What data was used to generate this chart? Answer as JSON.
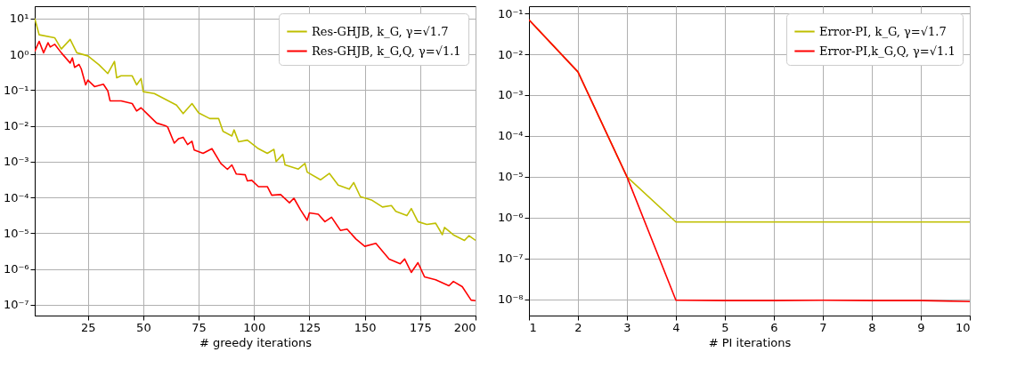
{
  "chart_data": [
    {
      "type": "line",
      "xlabel": "# greedy iterations",
      "log": "y",
      "grid": true,
      "legend": "top right",
      "marker": "none",
      "line_style": "solid",
      "xlim": [
        1,
        200
      ],
      "xticks": [
        25,
        50,
        75,
        100,
        125,
        150,
        175,
        200
      ],
      "ylim": [
        5e-08,
        22
      ],
      "yticks": [
        {
          "value": 10,
          "label": "10¹"
        },
        {
          "value": 1,
          "label": "10⁰"
        },
        {
          "value": 0.1,
          "label": "10⁻¹"
        },
        {
          "value": 0.01,
          "label": "10⁻²"
        },
        {
          "value": 0.001,
          "label": "10⁻³"
        },
        {
          "value": 0.0001,
          "label": "10⁻⁴"
        },
        {
          "value": 1e-05,
          "label": "10⁻⁵"
        },
        {
          "value": 1e-06,
          "label": "10⁻⁶"
        },
        {
          "value": 1e-07,
          "label": "10⁻⁷"
        }
      ],
      "series": [
        {
          "name": "Res-GHJB, k_G, γ=√1.7",
          "color": "#bfbf00",
          "x": [
            1,
            3,
            10,
            13,
            17,
            20,
            25,
            30,
            34,
            37,
            38,
            40,
            45,
            47,
            49,
            50,
            55,
            60,
            65,
            68,
            72,
            75,
            80,
            84,
            86,
            90,
            91,
            93,
            97,
            102,
            106,
            109,
            110,
            113,
            114,
            120,
            123,
            124,
            130,
            134,
            138,
            143,
            145,
            148,
            153,
            158,
            162,
            164,
            169,
            171,
            174,
            178,
            182,
            185,
            186,
            190,
            195,
            197,
            200
          ],
          "values": [
            10,
            3.5,
            2.9,
            1.4,
            2.6,
            1.1,
            0.9,
            0.51,
            0.29,
            0.63,
            0.22,
            0.25,
            0.25,
            0.14,
            0.21,
            0.09,
            0.08,
            0.055,
            0.038,
            0.022,
            0.042,
            0.023,
            0.016,
            0.016,
            0.007,
            0.0052,
            0.0077,
            0.0036,
            0.004,
            0.0023,
            0.0017,
            0.0022,
            0.001,
            0.0016,
            0.00081,
            0.00062,
            0.00089,
            0.00051,
            0.00031,
            0.00047,
            0.00022,
            0.00017,
            0.00026,
            0.000105,
            8.5e-05,
            5.4e-05,
            5.9e-05,
            4.1e-05,
            3.1e-05,
            4.9e-05,
            2.1e-05,
            1.75e-05,
            1.9e-05,
            9.1e-06,
            1.45e-05,
            9e-06,
            6.3e-06,
            8.5e-06,
            6.3e-06
          ]
        },
        {
          "name": "Res-GHJB, k_G,Q, γ=√1.1",
          "color": "#ff0000",
          "x": [
            1,
            3,
            5,
            7,
            8,
            10,
            13,
            17,
            18,
            19,
            21,
            22,
            24,
            25,
            28,
            32,
            34,
            35,
            40,
            45,
            47,
            49,
            52,
            56,
            60,
            61,
            64,
            66,
            68,
            70,
            72,
            73,
            77,
            81,
            85,
            88,
            90,
            92,
            96,
            97,
            99,
            102,
            106,
            108,
            112,
            116,
            118,
            121,
            124,
            125,
            129,
            132,
            135,
            139,
            142,
            146,
            150,
            155,
            161,
            166,
            168,
            171,
            174,
            177,
            182,
            188,
            190,
            194,
            198,
            200
          ],
          "values": [
            1.2,
            2.3,
            1.1,
            2.1,
            1.6,
            1.9,
            1.1,
            0.57,
            0.79,
            0.43,
            0.52,
            0.39,
            0.14,
            0.19,
            0.125,
            0.145,
            0.095,
            0.05,
            0.05,
            0.042,
            0.026,
            0.032,
            0.021,
            0.012,
            0.0101,
            0.0093,
            0.0033,
            0.0044,
            0.0048,
            0.003,
            0.0037,
            0.0021,
            0.0017,
            0.0023,
            0.00089,
            0.00061,
            0.00081,
            0.00045,
            0.00043,
            0.00029,
            0.0003,
            0.0002,
            0.0002,
            0.000115,
            0.00012,
            7.1e-05,
            9.5e-05,
            4.5e-05,
            2.3e-05,
            3.7e-05,
            3.4e-05,
            2.1e-05,
            2.8e-05,
            1.2e-05,
            1.3e-05,
            6.9e-06,
            4.3e-06,
            5.2e-06,
            1.9e-06,
            1.4e-06,
            1.9e-06,
            8e-07,
            1.5e-06,
            6e-07,
            5e-07,
            3.4e-07,
            4.5e-07,
            3.2e-07,
            1.35e-07,
            1.3e-07
          ]
        }
      ]
    },
    {
      "type": "line",
      "xlabel": "# PI iterations",
      "log": "y",
      "grid": true,
      "legend": "top right",
      "marker": "none",
      "line_style": "solid",
      "xlim": [
        1,
        10
      ],
      "xticks": [
        1,
        2,
        3,
        4,
        5,
        6,
        7,
        8,
        9,
        10
      ],
      "ylim": [
        4e-09,
        0.15
      ],
      "yticks": [
        {
          "value": 0.1,
          "label": "10⁻¹"
        },
        {
          "value": 0.01,
          "label": "10⁻²"
        },
        {
          "value": 0.001,
          "label": "10⁻³"
        },
        {
          "value": 0.0001,
          "label": "10⁻⁴"
        },
        {
          "value": 1e-05,
          "label": "10⁻⁵"
        },
        {
          "value": 1e-06,
          "label": "10⁻⁶"
        },
        {
          "value": 1e-07,
          "label": "10⁻⁷"
        },
        {
          "value": 1e-08,
          "label": "10⁻⁸"
        }
      ],
      "series": [
        {
          "name": "Error-PI, k_G,  γ=√1.7",
          "color": "#bfbf00",
          "x": [
            1,
            2,
            3,
            4,
            5,
            6,
            7,
            8,
            9,
            10
          ],
          "values": [
            0.07,
            0.0037,
            1e-05,
            7.8e-07,
            7.8e-07,
            7.8e-07,
            7.8e-07,
            7.8e-07,
            7.8e-07,
            7.8e-07
          ]
        },
        {
          "name": "Error-PI,k_G,Q, γ=√1.1",
          "color": "#ff0000",
          "x": [
            1,
            2,
            3,
            4,
            5,
            6,
            7,
            8,
            9,
            10
          ],
          "values": [
            0.07,
            0.0037,
            1e-05,
            9.5e-09,
            9.3e-09,
            9.3e-09,
            9.5e-09,
            9.3e-09,
            9.3e-09,
            8.8e-09
          ]
        }
      ]
    }
  ]
}
